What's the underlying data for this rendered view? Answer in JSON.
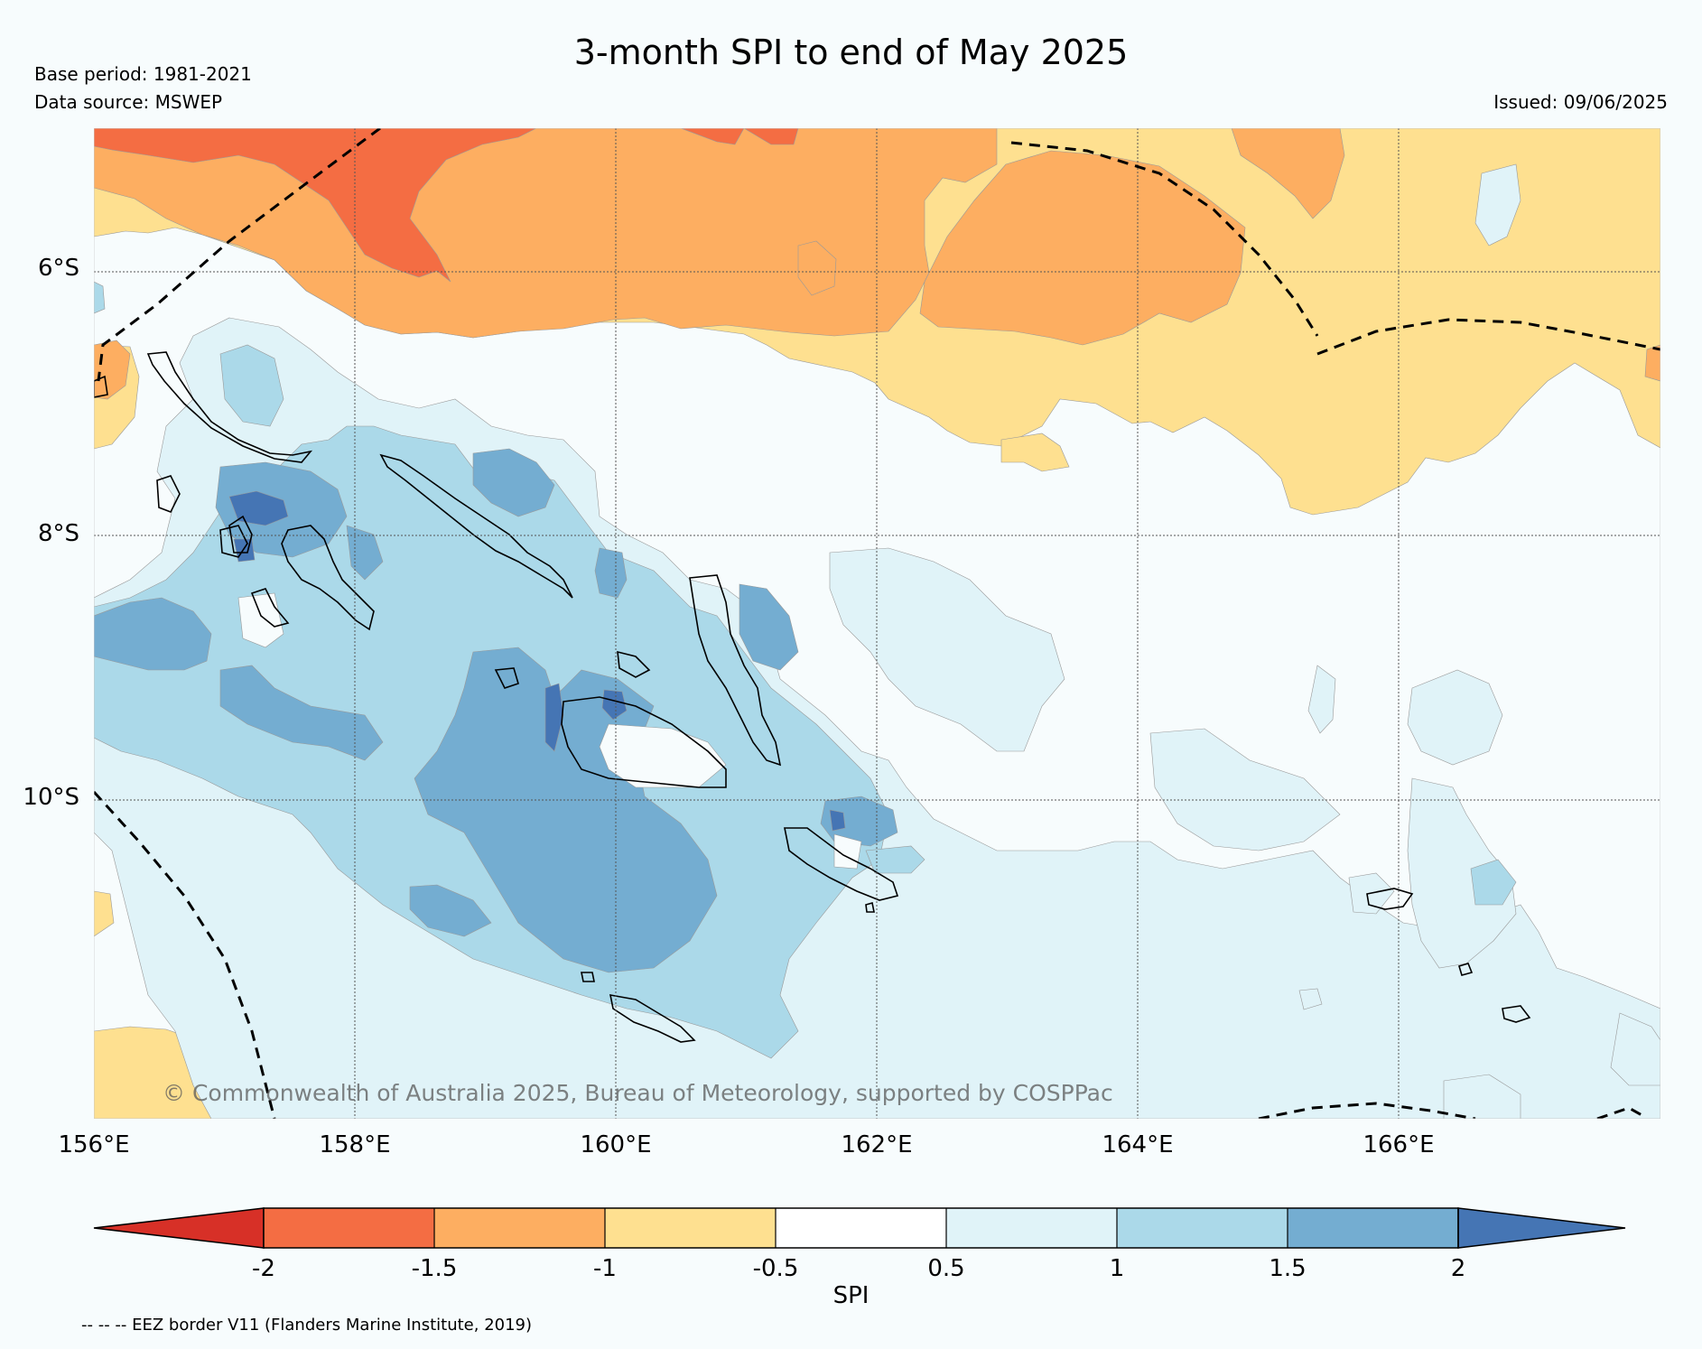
{
  "title": "3-month SPI to end of May 2025",
  "base_period": "Base period: 1981-2021",
  "data_source": "Data source: MSWEP",
  "issued": "Issued: 09/06/2025",
  "copyright": "© Commonwealth of Australia 2025, Bureau of Meteorology, supported by COSPPac",
  "lat_labels": [
    "6°S",
    "8°S",
    "10°S"
  ],
  "lon_labels": [
    "156°E",
    "158°E",
    "160°E",
    "162°E",
    "164°E",
    "166°E"
  ],
  "colorbar": {
    "label": "SPI",
    "ticks": [
      "-2",
      "-1.5",
      "-1",
      "-0.5",
      "0.5",
      "1",
      "1.5",
      "2"
    ],
    "colors": [
      "#d73027",
      "#f46d43",
      "#fdae61",
      "#fee090",
      "#ffffff",
      "#e0f3f8",
      "#abd9e9",
      "#74add1",
      "#4575b4"
    ]
  },
  "legend_note": "-- -- -- EEZ border V11 (Flanders Marine Institute, 2019)"
}
